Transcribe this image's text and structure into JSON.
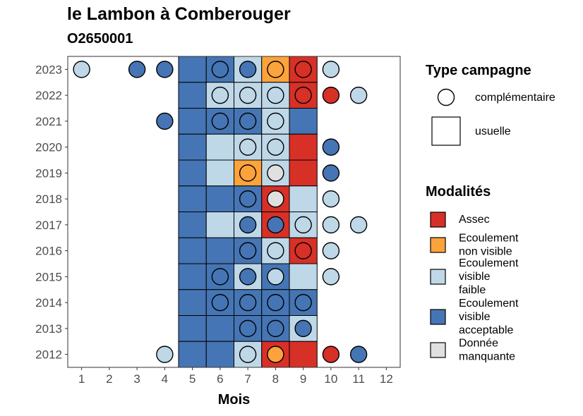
{
  "title": "le Lambon à Comberouger",
  "subtitle": "O2650001",
  "chart_data": {
    "type": "heatmap",
    "title": "le Lambon à Comberouger",
    "subtitle": "O2650001",
    "xlabel": "Mois",
    "ylabel": "",
    "x_ticks": [
      1,
      2,
      3,
      4,
      5,
      6,
      7,
      8,
      9,
      10,
      11,
      12
    ],
    "y_ticks": [
      2012,
      2013,
      2014,
      2015,
      2016,
      2017,
      2018,
      2019,
      2020,
      2021,
      2022,
      2023
    ],
    "xlim": [
      0.5,
      12.5
    ],
    "grid": false,
    "legend_position": "right",
    "categories": {
      "assec": {
        "label": "Assec",
        "color": "#D73027"
      },
      "nonvisible": {
        "label": "Ecoulement\nnon visible",
        "color": "#FDA33B"
      },
      "faible": {
        "label": "Ecoulement\nvisible\nfaible",
        "color": "#BFD8E8"
      },
      "acceptable": {
        "label": "Ecoulement\nvisible\nacceptable",
        "color": "#4575B4"
      },
      "manquante": {
        "label": "Donnée\nmanquante",
        "color": "#E0E0E0"
      }
    },
    "legend_type": {
      "title": "Type campagne",
      "items": [
        {
          "label": "complémentaire",
          "shape": "circle"
        },
        {
          "label": "usuelle",
          "shape": "square"
        }
      ]
    },
    "legend_modalites": {
      "title": "Modalités",
      "items": [
        "assec",
        "nonvisible",
        "faible",
        "acceptable",
        "manquante"
      ]
    },
    "usuelle": [
      {
        "year": 2023,
        "month": 5,
        "value": "acceptable"
      },
      {
        "year": 2023,
        "month": 6,
        "value": "acceptable"
      },
      {
        "year": 2023,
        "month": 7,
        "value": "faible"
      },
      {
        "year": 2023,
        "month": 8,
        "value": "nonvisible"
      },
      {
        "year": 2023,
        "month": 9,
        "value": "assec"
      },
      {
        "year": 2022,
        "month": 5,
        "value": "acceptable"
      },
      {
        "year": 2022,
        "month": 6,
        "value": "faible"
      },
      {
        "year": 2022,
        "month": 7,
        "value": "faible"
      },
      {
        "year": 2022,
        "month": 8,
        "value": "faible"
      },
      {
        "year": 2022,
        "month": 9,
        "value": "assec"
      },
      {
        "year": 2021,
        "month": 5,
        "value": "acceptable"
      },
      {
        "year": 2021,
        "month": 6,
        "value": "acceptable"
      },
      {
        "year": 2021,
        "month": 7,
        "value": "acceptable"
      },
      {
        "year": 2021,
        "month": 8,
        "value": "faible"
      },
      {
        "year": 2021,
        "month": 9,
        "value": "acceptable"
      },
      {
        "year": 2020,
        "month": 5,
        "value": "acceptable"
      },
      {
        "year": 2020,
        "month": 6,
        "value": "faible"
      },
      {
        "year": 2020,
        "month": 7,
        "value": "faible"
      },
      {
        "year": 2020,
        "month": 8,
        "value": "faible"
      },
      {
        "year": 2020,
        "month": 9,
        "value": "assec"
      },
      {
        "year": 2019,
        "month": 5,
        "value": "acceptable"
      },
      {
        "year": 2019,
        "month": 6,
        "value": "faible"
      },
      {
        "year": 2019,
        "month": 7,
        "value": "nonvisible"
      },
      {
        "year": 2019,
        "month": 8,
        "value": "faible"
      },
      {
        "year": 2019,
        "month": 9,
        "value": "assec"
      },
      {
        "year": 2018,
        "month": 5,
        "value": "acceptable"
      },
      {
        "year": 2018,
        "month": 6,
        "value": "acceptable"
      },
      {
        "year": 2018,
        "month": 7,
        "value": "acceptable"
      },
      {
        "year": 2018,
        "month": 8,
        "value": "assec"
      },
      {
        "year": 2018,
        "month": 9,
        "value": "faible"
      },
      {
        "year": 2017,
        "month": 5,
        "value": "acceptable"
      },
      {
        "year": 2017,
        "month": 6,
        "value": "faible"
      },
      {
        "year": 2017,
        "month": 7,
        "value": "faible"
      },
      {
        "year": 2017,
        "month": 8,
        "value": "assec"
      },
      {
        "year": 2017,
        "month": 9,
        "value": "faible"
      },
      {
        "year": 2016,
        "month": 5,
        "value": "acceptable"
      },
      {
        "year": 2016,
        "month": 6,
        "value": "acceptable"
      },
      {
        "year": 2016,
        "month": 7,
        "value": "acceptable"
      },
      {
        "year": 2016,
        "month": 8,
        "value": "faible"
      },
      {
        "year": 2016,
        "month": 9,
        "value": "assec"
      },
      {
        "year": 2015,
        "month": 5,
        "value": "acceptable"
      },
      {
        "year": 2015,
        "month": 6,
        "value": "acceptable"
      },
      {
        "year": 2015,
        "month": 7,
        "value": "faible"
      },
      {
        "year": 2015,
        "month": 8,
        "value": "acceptable"
      },
      {
        "year": 2015,
        "month": 9,
        "value": "faible"
      },
      {
        "year": 2014,
        "month": 5,
        "value": "acceptable"
      },
      {
        "year": 2014,
        "month": 6,
        "value": "acceptable"
      },
      {
        "year": 2014,
        "month": 7,
        "value": "acceptable"
      },
      {
        "year": 2014,
        "month": 8,
        "value": "acceptable"
      },
      {
        "year": 2014,
        "month": 9,
        "value": "acceptable"
      },
      {
        "year": 2013,
        "month": 5,
        "value": "acceptable"
      },
      {
        "year": 2013,
        "month": 6,
        "value": "acceptable"
      },
      {
        "year": 2013,
        "month": 7,
        "value": "acceptable"
      },
      {
        "year": 2013,
        "month": 8,
        "value": "acceptable"
      },
      {
        "year": 2013,
        "month": 9,
        "value": "faible"
      },
      {
        "year": 2012,
        "month": 5,
        "value": "acceptable"
      },
      {
        "year": 2012,
        "month": 6,
        "value": "acceptable"
      },
      {
        "year": 2012,
        "month": 7,
        "value": "faible"
      },
      {
        "year": 2012,
        "month": 8,
        "value": "assec"
      },
      {
        "year": 2012,
        "month": 9,
        "value": "assec"
      }
    ],
    "complementaire": [
      {
        "year": 2023,
        "month": 1,
        "value": "faible"
      },
      {
        "year": 2023,
        "month": 3,
        "value": "acceptable"
      },
      {
        "year": 2023,
        "month": 4,
        "value": "acceptable"
      },
      {
        "year": 2023,
        "month": 6,
        "value": "acceptable"
      },
      {
        "year": 2023,
        "month": 7,
        "value": "acceptable"
      },
      {
        "year": 2023,
        "month": 8,
        "value": "nonvisible"
      },
      {
        "year": 2023,
        "month": 9,
        "value": "assec"
      },
      {
        "year": 2023,
        "month": 10,
        "value": "faible"
      },
      {
        "year": 2022,
        "month": 6,
        "value": "faible"
      },
      {
        "year": 2022,
        "month": 7,
        "value": "faible"
      },
      {
        "year": 2022,
        "month": 8,
        "value": "faible"
      },
      {
        "year": 2022,
        "month": 9,
        "value": "assec"
      },
      {
        "year": 2022,
        "month": 10,
        "value": "assec"
      },
      {
        "year": 2022,
        "month": 11,
        "value": "faible"
      },
      {
        "year": 2021,
        "month": 4,
        "value": "acceptable"
      },
      {
        "year": 2021,
        "month": 6,
        "value": "acceptable"
      },
      {
        "year": 2021,
        "month": 7,
        "value": "acceptable"
      },
      {
        "year": 2021,
        "month": 8,
        "value": "faible"
      },
      {
        "year": 2020,
        "month": 7,
        "value": "faible"
      },
      {
        "year": 2020,
        "month": 8,
        "value": "faible"
      },
      {
        "year": 2020,
        "month": 10,
        "value": "acceptable"
      },
      {
        "year": 2019,
        "month": 7,
        "value": "nonvisible"
      },
      {
        "year": 2019,
        "month": 8,
        "value": "manquante"
      },
      {
        "year": 2019,
        "month": 10,
        "value": "acceptable"
      },
      {
        "year": 2018,
        "month": 7,
        "value": "acceptable"
      },
      {
        "year": 2018,
        "month": 8,
        "value": "manquante"
      },
      {
        "year": 2018,
        "month": 10,
        "value": "faible"
      },
      {
        "year": 2017,
        "month": 7,
        "value": "acceptable"
      },
      {
        "year": 2017,
        "month": 8,
        "value": "acceptable"
      },
      {
        "year": 2017,
        "month": 9,
        "value": "faible"
      },
      {
        "year": 2017,
        "month": 10,
        "value": "faible"
      },
      {
        "year": 2017,
        "month": 11,
        "value": "faible"
      },
      {
        "year": 2016,
        "month": 7,
        "value": "acceptable"
      },
      {
        "year": 2016,
        "month": 8,
        "value": "faible"
      },
      {
        "year": 2016,
        "month": 9,
        "value": "assec"
      },
      {
        "year": 2016,
        "month": 10,
        "value": "faible"
      },
      {
        "year": 2015,
        "month": 6,
        "value": "acceptable"
      },
      {
        "year": 2015,
        "month": 7,
        "value": "acceptable"
      },
      {
        "year": 2015,
        "month": 8,
        "value": "faible"
      },
      {
        "year": 2015,
        "month": 10,
        "value": "faible"
      },
      {
        "year": 2014,
        "month": 6,
        "value": "acceptable"
      },
      {
        "year": 2014,
        "month": 7,
        "value": "acceptable"
      },
      {
        "year": 2014,
        "month": 8,
        "value": "acceptable"
      },
      {
        "year": 2014,
        "month": 9,
        "value": "acceptable"
      },
      {
        "year": 2013,
        "month": 7,
        "value": "acceptable"
      },
      {
        "year": 2013,
        "month": 8,
        "value": "acceptable"
      },
      {
        "year": 2013,
        "month": 9,
        "value": "acceptable"
      },
      {
        "year": 2012,
        "month": 4,
        "value": "faible"
      },
      {
        "year": 2012,
        "month": 7,
        "value": "faible"
      },
      {
        "year": 2012,
        "month": 8,
        "value": "nonvisible"
      },
      {
        "year": 2012,
        "month": 10,
        "value": "assec"
      },
      {
        "year": 2012,
        "month": 11,
        "value": "acceptable"
      }
    ]
  }
}
